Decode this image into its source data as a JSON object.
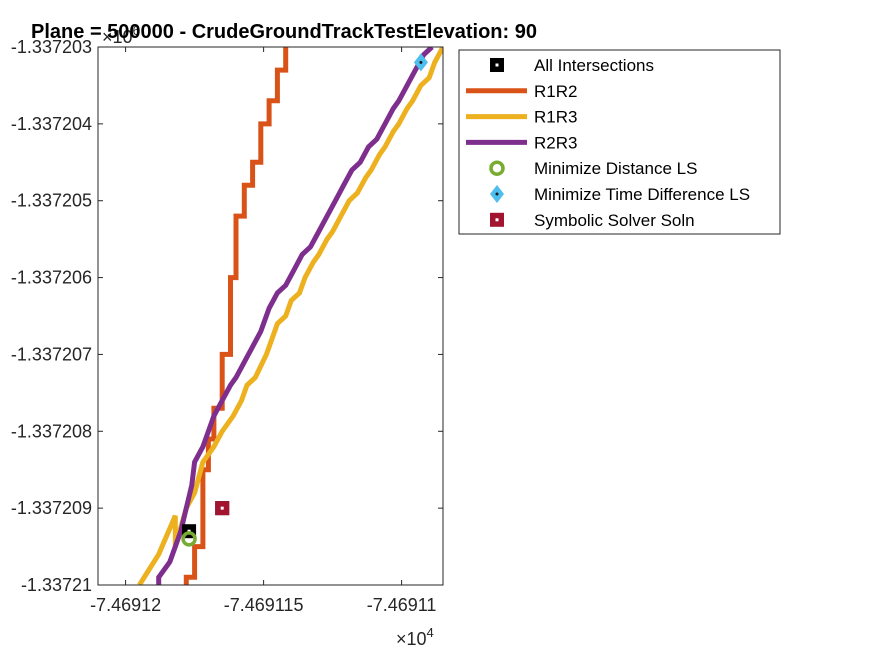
{
  "chart_data": {
    "type": "line",
    "title": "Plane = 500000 - CrudeGroundTrackTestElevation: 90",
    "xlabel": "",
    "ylabel": "",
    "xlim": [
      -7.469121,
      -7.4691085
    ],
    "ylim": [
      -1.33721,
      -1.337203
    ],
    "x_exponent_label": "×10",
    "x_exponent_power": "4",
    "y_exponent_label": "×10",
    "y_exponent_power": "6",
    "x_ticks": [
      -7.46912,
      -7.469115,
      -7.46911
    ],
    "x_tick_labels": [
      "-7.46912",
      "-7.469115",
      "-7.46911"
    ],
    "y_ticks": [
      -1.337203,
      -1.337204,
      -1.337205,
      -1.337206,
      -1.337207,
      -1.337208,
      -1.337209,
      -1.33721
    ],
    "y_tick_labels": [
      "-1.337203",
      "-1.337204",
      "-1.337205",
      "-1.337206",
      "-1.337207",
      "-1.337208",
      "-1.337209",
      "-1.33721"
    ],
    "grid": false,
    "legend_position": "outside-top-right",
    "series": [
      {
        "name": "R1R2",
        "kind": "line",
        "color": "#D95319",
        "x": [
          -7.4691178,
          -7.4691178,
          -7.4691175,
          -7.4691175,
          -7.4691172,
          -7.4691172,
          -7.469117,
          -7.469117,
          -7.4691168,
          -7.4691168,
          -7.4691165,
          -7.4691165,
          -7.4691162,
          -7.4691162,
          -7.469116,
          -7.469116,
          -7.4691157,
          -7.4691157,
          -7.4691154,
          -7.4691154,
          -7.4691151,
          -7.4691151,
          -7.4691148,
          -7.4691148,
          -7.4691145,
          -7.4691145,
          -7.4691142,
          -7.4691142
        ],
        "y": [
          -1.33721,
          -1.3372099,
          -1.3372099,
          -1.3372095,
          -1.3372095,
          -1.3372085,
          -1.3372085,
          -1.3372081,
          -1.3372081,
          -1.3372077,
          -1.3372077,
          -1.337207,
          -1.337207,
          -1.337206,
          -1.337206,
          -1.3372052,
          -1.3372052,
          -1.3372048,
          -1.3372048,
          -1.3372045,
          -1.3372045,
          -1.337204,
          -1.337204,
          -1.3372037,
          -1.3372037,
          -1.3372033,
          -1.3372033,
          -1.337203
        ]
      },
      {
        "name": "R1R3",
        "kind": "line",
        "color": "#EDB120",
        "x": [
          -7.4691195,
          -7.4691188,
          -7.4691182,
          -7.4691182,
          -7.4691178,
          -7.4691175,
          -7.4691172,
          -7.4691168,
          -7.4691165,
          -7.4691161,
          -7.4691158,
          -7.4691156,
          -7.4691153,
          -7.4691149,
          -7.4691147,
          -7.4691145,
          -7.4691142,
          -7.469114,
          -7.4691137,
          -7.4691135,
          -7.4691132,
          -7.469113,
          -7.4691127,
          -7.4691125,
          -7.4691122,
          -7.4691119,
          -7.4691116,
          -7.4691113,
          -7.4691111,
          -7.4691108,
          -7.4691106,
          -7.4691103,
          -7.4691101,
          -7.4691098,
          -7.4691096,
          -7.4691093,
          -7.469109,
          -7.4691088,
          -7.4691085
        ],
        "y": [
          -1.33721,
          -1.3372096,
          -1.3372091,
          -1.3372095,
          -1.337209,
          -1.3372088,
          -1.3372084,
          -1.3372082,
          -1.337208,
          -1.3372078,
          -1.3372076,
          -1.3372074,
          -1.3372073,
          -1.337207,
          -1.3372068,
          -1.3372066,
          -1.3372065,
          -1.3372063,
          -1.3372062,
          -1.337206,
          -1.3372058,
          -1.3372057,
          -1.3372055,
          -1.3372054,
          -1.3372052,
          -1.337205,
          -1.3372049,
          -1.3372047,
          -1.3372046,
          -1.3372044,
          -1.3372043,
          -1.3372041,
          -1.337204,
          -1.3372038,
          -1.3372037,
          -1.3372035,
          -1.3372034,
          -1.3372032,
          -1.337203
        ]
      },
      {
        "name": "R2R3",
        "kind": "line",
        "color": "#7E2F8E",
        "x": [
          -7.4691188,
          -7.4691188,
          -7.4691184,
          -7.4691182,
          -7.469118,
          -7.4691178,
          -7.4691176,
          -7.4691175,
          -7.4691172,
          -7.469117,
          -7.4691168,
          -7.4691165,
          -7.4691162,
          -7.469116,
          -7.4691157,
          -7.4691154,
          -7.4691151,
          -7.4691148,
          -7.4691145,
          -7.4691142,
          -7.4691139,
          -7.4691136,
          -7.4691133,
          -7.469113,
          -7.4691127,
          -7.4691124,
          -7.4691121,
          -7.4691118,
          -7.4691115,
          -7.4691112,
          -7.4691109,
          -7.4691106,
          -7.4691103,
          -7.4691101,
          -7.4691098,
          -7.4691095,
          -7.4691092,
          -7.4691089
        ],
        "y": [
          -1.33721,
          -1.3372099,
          -1.3372097,
          -1.3372095,
          -1.3372093,
          -1.337209,
          -1.3372087,
          -1.3372084,
          -1.3372082,
          -1.337208,
          -1.3372078,
          -1.3372076,
          -1.3372074,
          -1.3372073,
          -1.3372071,
          -1.3372069,
          -1.3372067,
          -1.3372064,
          -1.3372062,
          -1.3372061,
          -1.3372059,
          -1.3372057,
          -1.3372056,
          -1.3372054,
          -1.3372052,
          -1.337205,
          -1.3372048,
          -1.3372046,
          -1.3372045,
          -1.3372043,
          -1.3372042,
          -1.337204,
          -1.3372038,
          -1.3372037,
          -1.3372035,
          -1.3372033,
          -1.3372031,
          -1.337203
        ]
      },
      {
        "name": "All Intersections",
        "kind": "marker",
        "marker": "square",
        "color": "#000000",
        "x": [
          -7.4691177,
          -7.4691165
        ],
        "y": [
          -1.3372093,
          -1.337209
        ]
      },
      {
        "name": "Minimize Distance LS",
        "kind": "marker",
        "marker": "circle",
        "color": "#77AC30",
        "x": [
          -7.4691177
        ],
        "y": [
          -1.3372094
        ]
      },
      {
        "name": "Minimize Time Difference LS",
        "kind": "marker",
        "marker": "diamond",
        "color": "#4DBEEE",
        "x": [
          -7.4691093
        ],
        "y": [
          -1.3372032
        ]
      },
      {
        "name": "Symbolic Solver Soln",
        "kind": "marker",
        "marker": "square",
        "color": "#A2142F",
        "x": [
          -7.4691165
        ],
        "y": [
          -1.337209
        ]
      }
    ]
  }
}
